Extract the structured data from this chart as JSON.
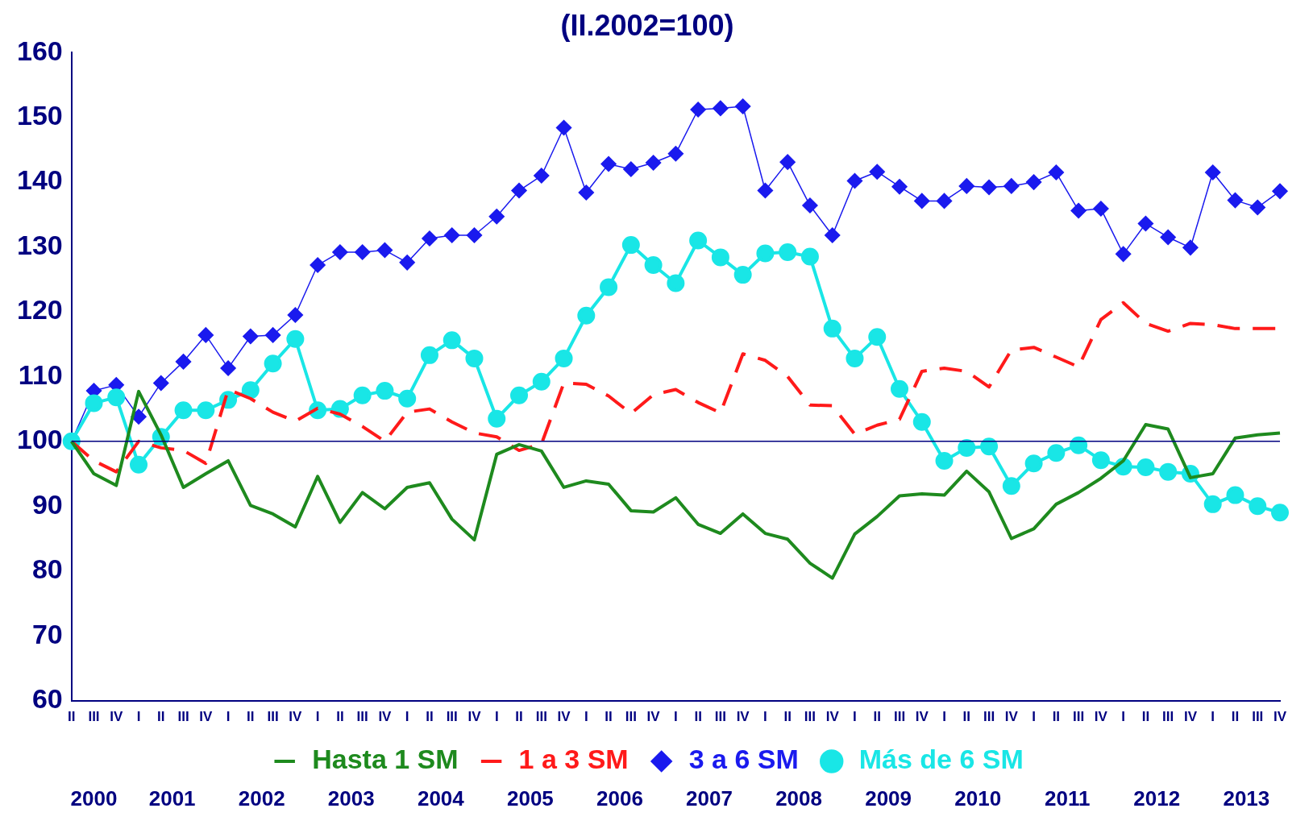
{
  "chart_data": {
    "type": "line",
    "title": "(II.2002=100)",
    "categories": [
      "II",
      "III",
      "IV",
      "I",
      "II",
      "III",
      "IV",
      "I",
      "II",
      "III",
      "IV",
      "I",
      "II",
      "III",
      "IV",
      "I",
      "II",
      "III",
      "IV",
      "I",
      "II",
      "III",
      "IV",
      "I",
      "II",
      "III",
      "IV",
      "I",
      "II",
      "III",
      "IV",
      "I",
      "II",
      "III",
      "IV",
      "I",
      "II",
      "III",
      "IV",
      "I",
      "II",
      "III",
      "IV",
      "I",
      "II",
      "III",
      "IV",
      "I",
      "II",
      "III",
      "IV",
      "I",
      "II",
      "III",
      "IV"
    ],
    "annotations": [
      "2000",
      "2001",
      "2002",
      "2003",
      "2004",
      "2005",
      "2006",
      "2007",
      "2008",
      "2009",
      "2010",
      "2011",
      "2012",
      "2013"
    ],
    "ylim": [
      60,
      160
    ],
    "yticks": [
      60,
      70,
      80,
      90,
      100,
      110,
      120,
      130,
      140,
      150,
      160
    ],
    "grid": false,
    "legend": "bottom",
    "ref_lines": [
      {
        "axis": "y",
        "value": 100,
        "color": "#000080"
      }
    ],
    "series": [
      {
        "name": "Hasta 1 SM",
        "color": "#1e8a1e",
        "marker": "none",
        "line_style": "solid",
        "values": [
          100,
          95,
          93.2,
          107.7,
          101,
          92.9,
          95,
          97,
          90.1,
          88.8,
          86.8,
          94.6,
          87.5,
          92.1,
          89.6,
          92.9,
          93.6,
          88,
          84.8,
          98,
          99.5,
          98.5,
          92.9,
          93.9,
          93.4,
          89.3,
          89.1,
          91.3,
          87.2,
          85.8,
          88.8,
          85.8,
          84.9,
          81.2,
          78.9,
          85.7,
          88.4,
          91.6,
          91.9,
          91.7,
          95.4,
          92.2,
          85,
          86.5,
          90.3,
          92.1,
          94.3,
          97,
          102.6,
          101.9,
          94.4,
          95,
          100.5,
          101,
          101.3
        ]
      },
      {
        "name": "1 a 3 SM",
        "color": "#ff1a1a",
        "marker": "none",
        "line_style": "dashed",
        "values": [
          100,
          97,
          95.3,
          100,
          99,
          98.6,
          96.6,
          108,
          106.6,
          104.5,
          103.1,
          105.1,
          104.2,
          102.3,
          100,
          104.5,
          105,
          103,
          101.3,
          100.7,
          98.6,
          99.6,
          109,
          108.8,
          107,
          104.3,
          107.2,
          108,
          106,
          104.4,
          113.5,
          112.5,
          110,
          105.6,
          105.5,
          101.1,
          102.5,
          103.4,
          110.8,
          111.3,
          110.8,
          108.4,
          114.1,
          114.5,
          113,
          111.5,
          118.8,
          121.4,
          118.2,
          117,
          118.2,
          118,
          117.4,
          117.4,
          117.4
        ]
      },
      {
        "name": "3 a 6 SM",
        "color": "#1a1aee",
        "marker": "diamond",
        "line_style": "solid",
        "values": [
          100,
          107.8,
          108.7,
          103.8,
          109,
          112.3,
          116.4,
          111.3,
          116.2,
          116.4,
          119.5,
          127.2,
          129.2,
          129.2,
          129.5,
          127.6,
          131.3,
          131.8,
          131.8,
          134.7,
          138.7,
          141,
          148.4,
          138.4,
          142.8,
          142,
          143,
          144.4,
          151.2,
          151.4,
          151.7,
          138.7,
          143.1,
          136.4,
          131.8,
          140.2,
          141.6,
          139.3,
          137.1,
          137.1,
          139.4,
          139.2,
          139.4,
          140,
          141.5,
          135.6,
          135.9,
          128.9,
          133.6,
          131.5,
          129.9,
          141.5,
          137.2,
          136.1,
          138.6
        ]
      },
      {
        "name": "Más de 6 SM",
        "color": "#19e6e6",
        "marker": "circle",
        "line_style": "solid",
        "values": [
          100,
          105.9,
          106.8,
          96.4,
          100.7,
          104.8,
          104.8,
          106.4,
          107.9,
          112,
          115.8,
          104.8,
          105,
          107.1,
          107.8,
          106.6,
          113.3,
          115.6,
          112.8,
          103.5,
          107.1,
          109.2,
          112.8,
          119.4,
          123.8,
          130.3,
          127.2,
          124.4,
          131,
          128.4,
          125.7,
          129,
          129.2,
          128.5,
          117.4,
          112.8,
          116.1,
          108.1,
          103,
          97,
          99,
          99.2,
          93.1,
          96.6,
          98.2,
          99.4,
          97.1,
          96.1,
          96,
          95.3,
          95,
          90.3,
          91.7,
          90,
          89
        ]
      }
    ]
  }
}
